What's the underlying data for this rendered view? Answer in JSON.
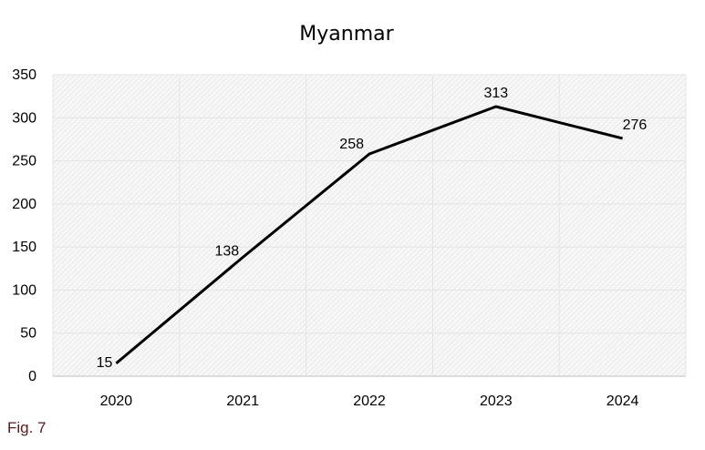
{
  "chart_data": {
    "type": "line",
    "title": "Myanmar",
    "xlabel": "",
    "ylabel": "",
    "categories": [
      "2020",
      "2021",
      "2022",
      "2023",
      "2024"
    ],
    "series": [
      {
        "values": [
          15,
          138,
          258,
          313,
          276
        ],
        "color": "#000000"
      }
    ],
    "data_labels": [
      "15",
      "138",
      "258",
      "313",
      "276"
    ],
    "ylim": [
      0,
      350
    ],
    "yticks": [
      "0",
      "50",
      "100",
      "150",
      "200",
      "250",
      "300",
      "350"
    ],
    "grid": true,
    "legend": "none",
    "plot_background": "hatched light gray"
  },
  "figure_label": "Fig. 7"
}
